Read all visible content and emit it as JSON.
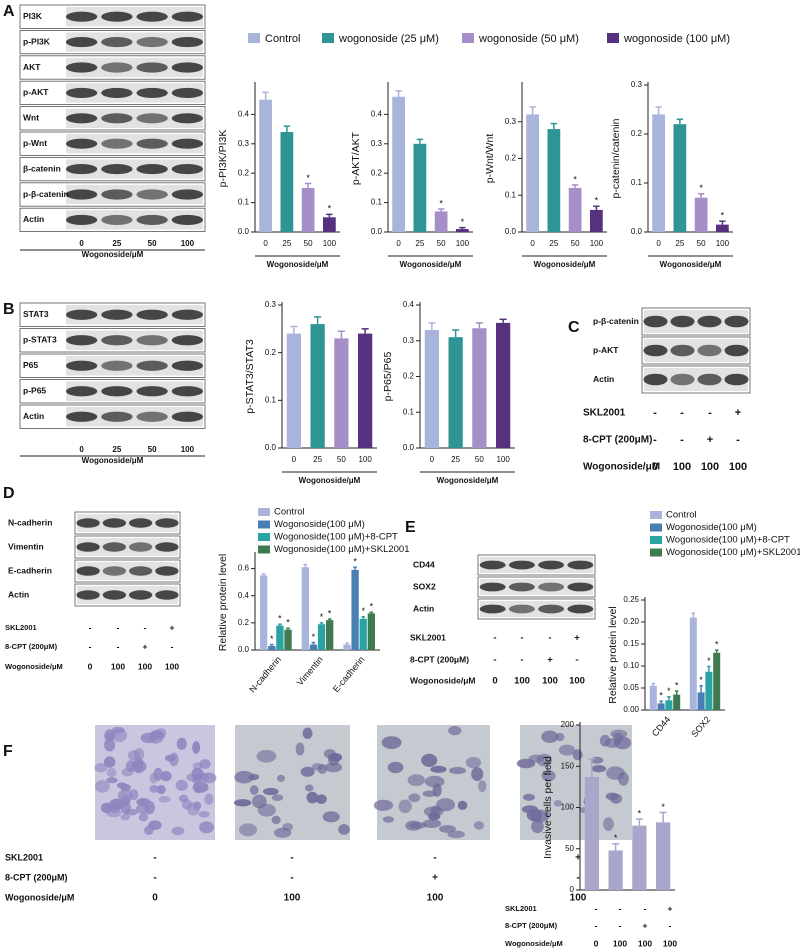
{
  "panel_letters": [
    "A",
    "B",
    "C",
    "D",
    "E",
    "F"
  ],
  "legend": [
    {
      "name": "Control",
      "color": "#a9b4dc"
    },
    {
      "name": "wogonoside  (25 μM)",
      "color": "#2e9494"
    },
    {
      "name": "wogonoside  (50 μM)",
      "color": "#a68fc8"
    },
    {
      "name": "wogonoside  (100 μM)",
      "color": "#55317f"
    }
  ],
  "blots": [
    {
      "rows": [
        "PI3K",
        "p-PI3K",
        "AKT",
        "p-AKT",
        "Wnt",
        "p-Wnt",
        "β-catenin",
        "p-β-catenin",
        "Actin"
      ],
      "lanes": [
        "0",
        "25",
        "50",
        "100"
      ],
      "lane_title": "Wogonoside/μM"
    },
    {
      "rows": [
        "STAT3",
        "p-STAT3",
        "P65",
        "p-P65",
        "Actin"
      ],
      "lanes": [
        "0",
        "25",
        "50",
        "100"
      ],
      "lane_title": "Wogonoside/μM"
    },
    {
      "rows": [
        "p-β-catenin",
        "p-AKT",
        "Actin"
      ]
    },
    {
      "rows": [
        "N-cadherin",
        "Vimentin",
        "E-cadherin",
        "Actin"
      ]
    },
    {
      "rows": [
        "CD44",
        "SOX2",
        "Actin"
      ]
    }
  ],
  "condition_tables": [
    {
      "rows": [
        {
          "label": "SKL2001",
          "cells": [
            "-",
            "-",
            "-",
            "+"
          ]
        },
        {
          "label": "8-CPT (200μM)",
          "cells": [
            "-",
            "-",
            "+",
            "-"
          ]
        },
        {
          "label": "Wogonoside/μM",
          "cells": [
            "0",
            "100",
            "100",
            "100"
          ]
        }
      ]
    },
    {
      "rows": [
        {
          "label": "SKL2001",
          "cells": [
            "-",
            "-",
            "-",
            "+"
          ]
        },
        {
          "label": "8-CPT (200μM)",
          "cells": [
            "-",
            "-",
            "+",
            "-"
          ]
        },
        {
          "label": "Wogonoside/μM",
          "cells": [
            "0",
            "100",
            "100",
            "100"
          ]
        }
      ]
    },
    {
      "rows": [
        {
          "label": "SKL2001",
          "cells": [
            "-",
            "-",
            "-",
            "+"
          ]
        },
        {
          "label": "8-CPT (200μM)",
          "cells": [
            "-",
            "-",
            "+",
            "-"
          ]
        },
        {
          "label": "Wogonoside/μM",
          "cells": [
            "0",
            "100",
            "100",
            "100"
          ]
        }
      ]
    },
    {
      "rows": [
        {
          "label": "SKL2001",
          "cells": [
            "-",
            "-",
            "-",
            "+"
          ]
        },
        {
          "label": "8-CPT (200μM)",
          "cells": [
            "-",
            "-",
            "+",
            "-"
          ]
        },
        {
          "label": "Wogonoside/μM",
          "cells": [
            "0",
            "100",
            "100",
            "100"
          ]
        }
      ]
    },
    {
      "rows": [
        {
          "label": "SKL2001",
          "cells": [
            "-",
            "-",
            "-",
            "+"
          ]
        },
        {
          "label": "8-CPT (200μM)",
          "cells": [
            "-",
            "-",
            "+",
            "-"
          ]
        },
        {
          "label": "Wogonoside/μM",
          "cells": [
            "0",
            "100",
            "100",
            "100"
          ]
        }
      ]
    }
  ],
  "chart_data": [
    {
      "type": "bar",
      "ylabel": "p-PI3K/PI3K",
      "xlabel": "Wogonoside/μM",
      "categories": [
        "0",
        "25",
        "50",
        "100"
      ],
      "values": [
        0.45,
        0.34,
        0.15,
        0.05
      ],
      "errors": [
        0.025,
        0.02,
        0.015,
        0.01
      ],
      "annotations": [
        null,
        null,
        "*",
        "*"
      ],
      "colors": [
        "#a9b4dc",
        "#2e9494",
        "#a68fc8",
        "#55317f"
      ],
      "ylim": [
        0,
        0.5
      ],
      "yticks": [
        {
          "value": 0,
          "label": "0.0"
        },
        0.1,
        0.2,
        0.3,
        0.4
      ]
    },
    {
      "type": "bar",
      "ylabel": "p-AKT/AKT",
      "xlabel": "Wogonoside/μM",
      "categories": [
        "0",
        "25",
        "50",
        "100"
      ],
      "values": [
        0.46,
        0.3,
        0.07,
        0.01
      ],
      "errors": [
        0.02,
        0.015,
        0.008,
        0.005
      ],
      "annotations": [
        null,
        null,
        "*",
        "*"
      ],
      "colors": [
        "#a9b4dc",
        "#2e9494",
        "#a68fc8",
        "#55317f"
      ],
      "ylim": [
        0,
        0.5
      ],
      "yticks": [
        {
          "value": 0,
          "label": "0.0"
        },
        0.1,
        0.2,
        0.3,
        0.4
      ]
    },
    {
      "type": "bar",
      "ylabel": "p-Wnt/Wnt",
      "xlabel": "Wogonoside/μM",
      "categories": [
        "0",
        "25",
        "50",
        "100"
      ],
      "values": [
        0.32,
        0.28,
        0.12,
        0.06
      ],
      "errors": [
        0.02,
        0.015,
        0.008,
        0.01
      ],
      "annotations": [
        null,
        null,
        "*",
        "*"
      ],
      "colors": [
        "#a9b4dc",
        "#2e9494",
        "#a68fc8",
        "#55317f"
      ],
      "ylim": [
        0,
        0.4
      ],
      "yticks": [
        {
          "value": 0,
          "label": "0.0"
        },
        0.1,
        0.2,
        0.3
      ]
    },
    {
      "type": "bar",
      "ylabel": "p-catenin/catenin",
      "xlabel": "Wogonoside/μM",
      "categories": [
        "0",
        "25",
        "50",
        "100"
      ],
      "values": [
        0.24,
        0.22,
        0.07,
        0.015
      ],
      "errors": [
        0.015,
        0.01,
        0.008,
        0.007
      ],
      "annotations": [
        null,
        null,
        "*",
        "*"
      ],
      "colors": [
        "#a9b4dc",
        "#2e9494",
        "#a68fc8",
        "#55317f"
      ],
      "ylim": [
        0,
        0.3
      ],
      "yticks": [
        {
          "value": 0,
          "label": "0.0"
        },
        0.1,
        0.2,
        0.3
      ]
    },
    {
      "type": "bar",
      "ylabel": "p-STAT3/STAT3",
      "xlabel": "Wogonoside/μM",
      "categories": [
        "0",
        "25",
        "50",
        "100"
      ],
      "values": [
        0.24,
        0.26,
        0.23,
        0.24
      ],
      "errors": [
        0.015,
        0.015,
        0.015,
        0.01
      ],
      "colors": [
        "#a9b4dc",
        "#2e9494",
        "#a68fc8",
        "#55317f"
      ],
      "ylim": [
        0,
        0.3
      ],
      "yticks": [
        {
          "value": 0,
          "label": "0.0"
        },
        0.1,
        0.2,
        0.3
      ]
    },
    {
      "type": "bar",
      "ylabel": "p-P65/P65",
      "xlabel": "Wogonoside/μM",
      "categories": [
        "0",
        "25",
        "50",
        "100"
      ],
      "values": [
        0.33,
        0.31,
        0.335,
        0.35
      ],
      "errors": [
        0.02,
        0.02,
        0.015,
        0.01
      ],
      "colors": [
        "#a9b4dc",
        "#2e9494",
        "#a68fc8",
        "#55317f"
      ],
      "ylim": [
        0,
        0.4
      ],
      "yticks": [
        {
          "value": 0,
          "label": "0.0"
        },
        0.1,
        0.2,
        0.3,
        0.4
      ]
    },
    {
      "type": "bar",
      "ylabel": "Relative protein level",
      "categories": [
        "N-cadherin",
        "Vimentin",
        "E-cadherin"
      ],
      "series": [
        {
          "name": "Control",
          "color": "#a9b4dc",
          "values": [
            0.55,
            0.61,
            0.04
          ],
          "errors": [
            0.01,
            0.02,
            0.01
          ]
        },
        {
          "name": "Wogonoside(100 μM)",
          "color": "#4a7fb5",
          "values": [
            0.03,
            0.04,
            0.59
          ],
          "errors": [
            0.01,
            0.015,
            0.02
          ],
          "annotations": [
            "*",
            "*",
            "*"
          ]
        },
        {
          "name": "Wogonoside(100 μM)+8-CPT",
          "color": "#2aa3a3",
          "values": [
            0.18,
            0.19,
            0.23
          ],
          "errors": [
            0.01,
            0.01,
            0.015
          ],
          "annotations": [
            "*",
            "*",
            "*"
          ]
        },
        {
          "name": "Wogonoside(100 μM)+SKL2001",
          "color": "#3f7a50",
          "values": [
            0.15,
            0.22,
            0.27
          ],
          "errors": [
            0.01,
            0.008,
            0.008
          ],
          "annotations": [
            "*",
            "*",
            "*"
          ]
        }
      ],
      "ylim": [
        0,
        0.7
      ],
      "yticks": [
        {
          "value": 0,
          "label": "0.0"
        },
        0.2,
        0.4,
        0.6
      ]
    },
    {
      "type": "bar",
      "ylabel": "Relative protein level",
      "categories": [
        "CD44",
        "SOX2"
      ],
      "series": [
        {
          "name": "Control",
          "color": "#a9b4dc",
          "values": [
            0.055,
            0.21
          ],
          "errors": [
            0.005,
            0.01
          ]
        },
        {
          "name": "Wogonoside(100 μM)",
          "color": "#4a7fb5",
          "values": [
            0.015,
            0.04
          ],
          "errors": [
            0.005,
            0.015
          ],
          "annotations": [
            "*",
            "*"
          ]
        },
        {
          "name": "Wogonoside(100 μM)+8-CPT",
          "color": "#2aa3a3",
          "values": [
            0.022,
            0.087
          ],
          "errors": [
            0.008,
            0.012
          ],
          "annotations": [
            "*",
            "*"
          ]
        },
        {
          "name": "Wogonoside(100 μM)+SKL2001",
          "color": "#3f7a50",
          "values": [
            0.035,
            0.13
          ],
          "errors": [
            0.008,
            0.006
          ],
          "annotations": [
            "*",
            "*"
          ]
        }
      ],
      "ylim": [
        0,
        0.25
      ],
      "yticks": [
        {
          "value": 0,
          "label": "0.00"
        },
        0.05,
        {
          "value": 0.1,
          "label": "0.10"
        },
        0.15,
        {
          "value": 0.2,
          "label": "0.20"
        },
        0.25
      ]
    },
    {
      "type": "bar",
      "ylabel": "Invasive cells per field",
      "categories": [
        null,
        null,
        null,
        null
      ],
      "values": [
        137,
        48,
        78,
        82
      ],
      "errors": [
        22,
        8,
        8,
        12
      ],
      "annotations": [
        null,
        "*",
        "*",
        "*"
      ],
      "color": "#a9a6cc",
      "ylim": [
        0,
        200
      ],
      "yticks": [
        0,
        50,
        100,
        150,
        200
      ]
    }
  ]
}
